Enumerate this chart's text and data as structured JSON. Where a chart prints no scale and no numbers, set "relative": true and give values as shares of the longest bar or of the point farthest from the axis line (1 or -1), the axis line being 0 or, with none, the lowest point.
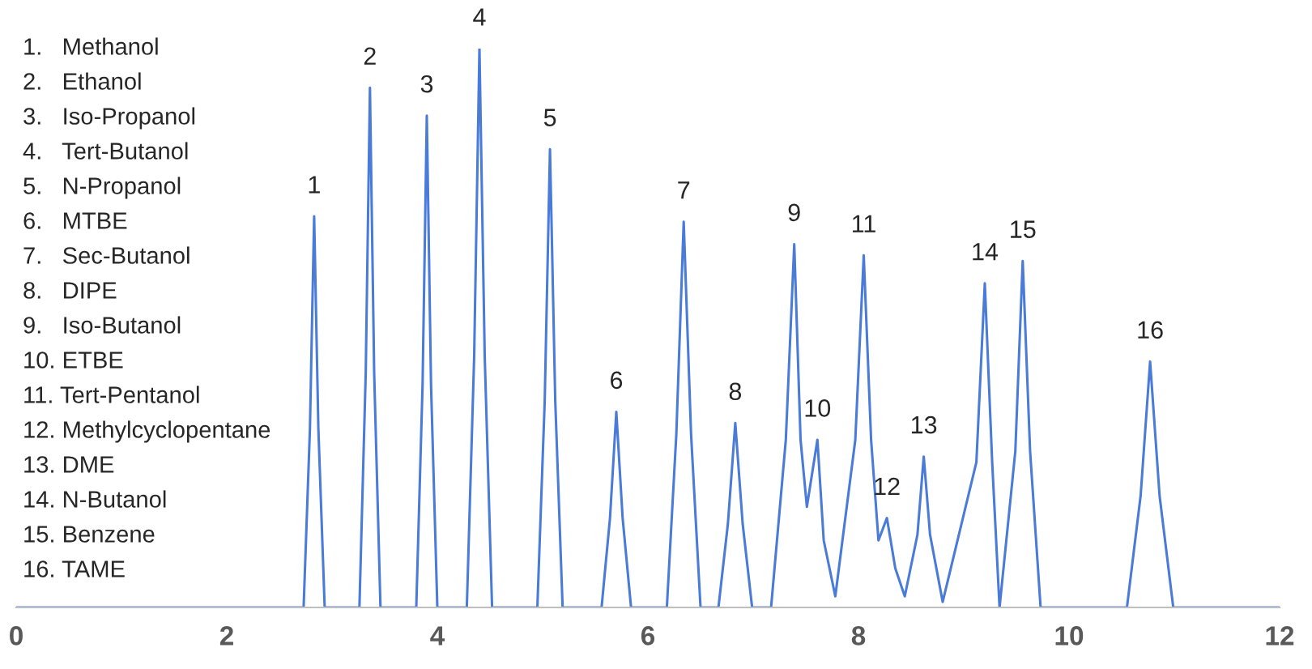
{
  "chart_data": {
    "type": "line",
    "relative": true,
    "xlim": [
      0,
      12
    ],
    "xticks": [
      0,
      2,
      4,
      6,
      8,
      10,
      12
    ],
    "grid": false,
    "legend": false,
    "marker": "none",
    "line_style": "solid",
    "series": [
      {
        "color": "#4a7bd8",
        "x": [
          0,
          2.73,
          2.79,
          2.83,
          2.87,
          2.93,
          3.26,
          3.32,
          3.36,
          3.4,
          3.46,
          3.8,
          3.86,
          3.9,
          3.94,
          4.0,
          4.28,
          4.35,
          4.4,
          4.45,
          4.52,
          4.95,
          5.02,
          5.07,
          5.12,
          5.19,
          5.56,
          5.64,
          5.7,
          5.76,
          5.84,
          6.18,
          6.27,
          6.34,
          6.41,
          6.5,
          6.67,
          6.76,
          6.83,
          6.9,
          6.99,
          7.17,
          7.31,
          7.39,
          7.45,
          7.51,
          7.61,
          7.67,
          7.78,
          7.97,
          8.05,
          8.12,
          8.19,
          8.27,
          8.35,
          8.44,
          8.56,
          8.62,
          8.68,
          8.8,
          9.12,
          9.2,
          9.27,
          9.34,
          9.49,
          9.56,
          9.63,
          9.73,
          10.55,
          10.68,
          10.77,
          10.86,
          10.99,
          12
        ],
        "values": [
          0,
          0,
          0.32,
          0.7,
          0.32,
          0,
          0,
          0.42,
          0.93,
          0.42,
          0,
          0,
          0.4,
          0.88,
          0.4,
          0,
          0,
          0.45,
          1.0,
          0.45,
          0,
          0,
          0.37,
          0.82,
          0.37,
          0,
          0,
          0.16,
          0.35,
          0.16,
          0,
          0,
          0.31,
          0.69,
          0.31,
          0,
          0,
          0.15,
          0.33,
          0.15,
          0,
          0,
          0.3,
          0.65,
          0.3,
          0.18,
          0.3,
          0.12,
          0.02,
          0.3,
          0.63,
          0.3,
          0.12,
          0.16,
          0.07,
          0.02,
          0.13,
          0.27,
          0.13,
          0.01,
          0.26,
          0.58,
          0.26,
          0,
          0.28,
          0.62,
          0.28,
          0,
          0,
          0.2,
          0.44,
          0.2,
          0,
          0
        ]
      }
    ],
    "annotations": [
      {
        "text": "1",
        "x": 2.83,
        "y": 0.7
      },
      {
        "text": "2",
        "x": 3.36,
        "y": 0.93
      },
      {
        "text": "3",
        "x": 3.9,
        "y": 0.88
      },
      {
        "text": "4",
        "x": 4.4,
        "y": 1.0
      },
      {
        "text": "5",
        "x": 5.07,
        "y": 0.82
      },
      {
        "text": "6",
        "x": 5.7,
        "y": 0.35
      },
      {
        "text": "7",
        "x": 6.34,
        "y": 0.69
      },
      {
        "text": "8",
        "x": 6.83,
        "y": 0.33
      },
      {
        "text": "9",
        "x": 7.39,
        "y": 0.65
      },
      {
        "text": "10",
        "x": 7.61,
        "y": 0.3
      },
      {
        "text": "11",
        "x": 8.05,
        "y": 0.63
      },
      {
        "text": "12",
        "x": 8.27,
        "y": 0.16
      },
      {
        "text": "13",
        "x": 8.62,
        "y": 0.27
      },
      {
        "text": "14",
        "x": 9.2,
        "y": 0.58
      },
      {
        "text": "15",
        "x": 9.56,
        "y": 0.62
      },
      {
        "text": "16",
        "x": 10.77,
        "y": 0.44
      },
      "1.   Methanol",
      "2.   Ethanol",
      "3.   Iso-Propanol",
      "4.   Tert-Butanol",
      "5.   N-Propanol",
      "6.   MTBE",
      "7.   Sec-Butanol",
      "8.   DIPE",
      "9.   Iso-Butanol",
      "10. ETBE",
      "11. Tert-Pentanol",
      "12. Methylcyclopentane",
      "13. DME",
      "14. N-Butanol",
      "15. Benzene",
      "16. TAME"
    ]
  }
}
